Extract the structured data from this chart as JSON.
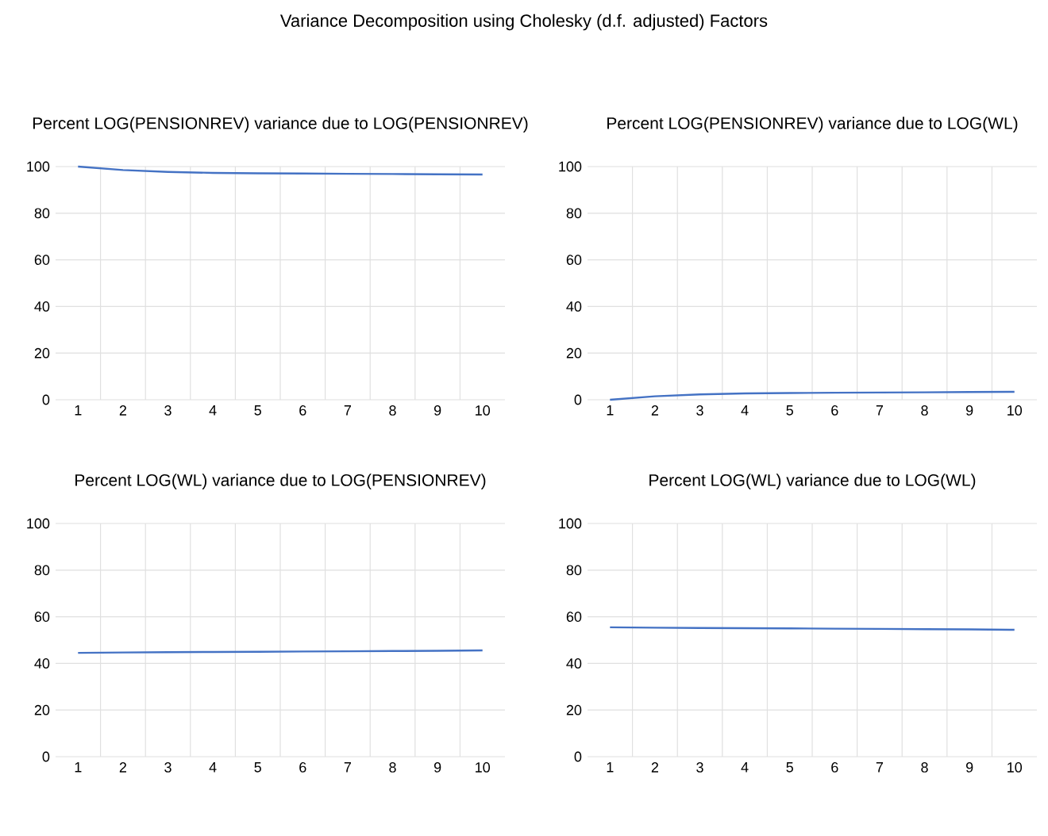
{
  "chart_data": [
    {
      "type": "line",
      "title": "Percent LOG(PENSIONREV) variance due to LOG(PENSIONREV)",
      "annotations": [
        "Variance Decomposition using Cholesky (d.f. adjusted) Factors"
      ],
      "categories": [
        "1",
        "2",
        "3",
        "4",
        "5",
        "6",
        "7",
        "8",
        "9",
        "10"
      ],
      "series": [
        {
          "color": "#4472c4",
          "values": [
            100,
            98.5,
            97.7,
            97.3,
            97.1,
            97.0,
            96.9,
            96.8,
            96.7,
            96.6
          ]
        }
      ],
      "ylim": [
        0,
        100
      ],
      "yticks": [
        0,
        20,
        40,
        60,
        80,
        100
      ],
      "grid": true
    },
    {
      "type": "line",
      "title": "Percent LOG(PENSIONREV) variance due to LOG(WL)",
      "categories": [
        "1",
        "2",
        "3",
        "4",
        "5",
        "6",
        "7",
        "8",
        "9",
        "10"
      ],
      "series": [
        {
          "color": "#4472c4",
          "values": [
            0,
            1.5,
            2.3,
            2.7,
            2.9,
            3.0,
            3.1,
            3.2,
            3.3,
            3.4
          ]
        }
      ],
      "ylim": [
        0,
        100
      ],
      "yticks": [
        0,
        20,
        40,
        60,
        80,
        100
      ],
      "grid": true
    },
    {
      "type": "line",
      "title": "Percent LOG(WL) variance due to LOG(PENSIONREV)",
      "categories": [
        "1",
        "2",
        "3",
        "4",
        "5",
        "6",
        "7",
        "8",
        "9",
        "10"
      ],
      "series": [
        {
          "color": "#4472c4",
          "values": [
            44.5,
            44.7,
            44.8,
            44.9,
            45.0,
            45.1,
            45.2,
            45.3,
            45.4,
            45.6
          ]
        }
      ],
      "ylim": [
        0,
        100
      ],
      "yticks": [
        0,
        20,
        40,
        60,
        80,
        100
      ],
      "grid": true
    },
    {
      "type": "line",
      "title": "Percent LOG(WL) variance due to LOG(WL)",
      "categories": [
        "1",
        "2",
        "3",
        "4",
        "5",
        "6",
        "7",
        "8",
        "9",
        "10"
      ],
      "series": [
        {
          "color": "#4472c4",
          "values": [
            55.5,
            55.3,
            55.2,
            55.1,
            55.0,
            54.9,
            54.8,
            54.7,
            54.6,
            54.4
          ]
        }
      ],
      "ylim": [
        0,
        100
      ],
      "yticks": [
        0,
        20,
        40,
        60,
        80,
        100
      ],
      "grid": true
    }
  ]
}
